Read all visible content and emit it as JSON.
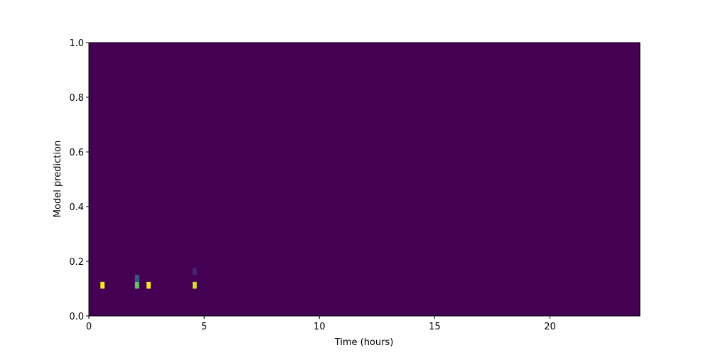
{
  "chart_data": {
    "type": "heatmap",
    "title": "",
    "xlabel": "Time (hours)",
    "ylabel": "Model prediction",
    "xlim": [
      0,
      23.9
    ],
    "ylim": [
      0.0,
      1.0
    ],
    "xticks": [
      "0",
      "5",
      "10",
      "15",
      "20"
    ],
    "yticks": [
      "0.0",
      "0.2",
      "0.4",
      "0.6",
      "0.8",
      "1.0"
    ],
    "colormap": "viridis",
    "background_value": 0,
    "bin_width_hours": 0.18,
    "bin_height": 0.025,
    "cells": [
      {
        "x": 0.5,
        "y": 0.1,
        "value": 1.0
      },
      {
        "x": 2.0,
        "y": 0.1,
        "value": 0.72
      },
      {
        "x": 2.0,
        "y": 0.125,
        "value": 0.28
      },
      {
        "x": 2.5,
        "y": 0.1,
        "value": 1.0
      },
      {
        "x": 4.5,
        "y": 0.1,
        "value": 0.93
      },
      {
        "x": 4.5,
        "y": 0.15,
        "value": 0.1
      }
    ],
    "grid": false,
    "legend": "none"
  }
}
